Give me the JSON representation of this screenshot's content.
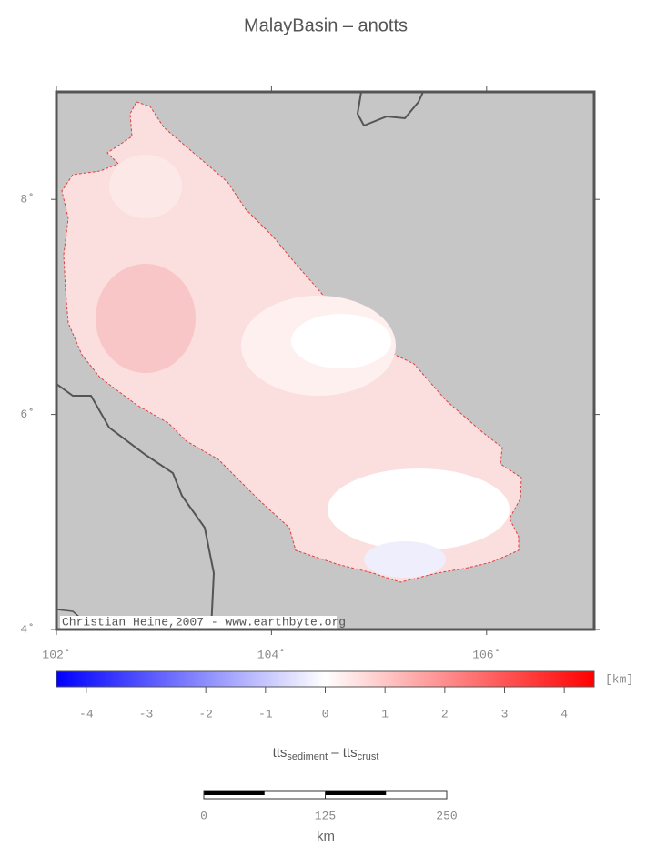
{
  "title": "MalayBasin – anotts",
  "map": {
    "xlim": [
      102,
      107
    ],
    "ylim": [
      4,
      9
    ],
    "xticks": [
      {
        "value": 102,
        "label": "102˚"
      },
      {
        "value": 104,
        "label": "104˚"
      },
      {
        "value": 106,
        "label": "106˚"
      }
    ],
    "yticks": [
      {
        "value": 4,
        "label": "4˚"
      },
      {
        "value": 6,
        "label": "6˚"
      },
      {
        "value": 8,
        "label": "8˚"
      }
    ],
    "credit": "Christian Heine,2007 - www.earthbyte.org"
  },
  "colorbar": {
    "lim": [
      -4.5,
      4.5
    ],
    "ticks": [
      -4,
      -3,
      -2,
      -1,
      0,
      1,
      2,
      3,
      4
    ],
    "unit": "[km]",
    "label": {
      "main1": "tts",
      "sub1": "sediment",
      "main2": " – tts",
      "sub2": "crust"
    }
  },
  "scalebar": {
    "ticks": [
      0,
      125,
      250
    ],
    "unit": "km"
  }
}
